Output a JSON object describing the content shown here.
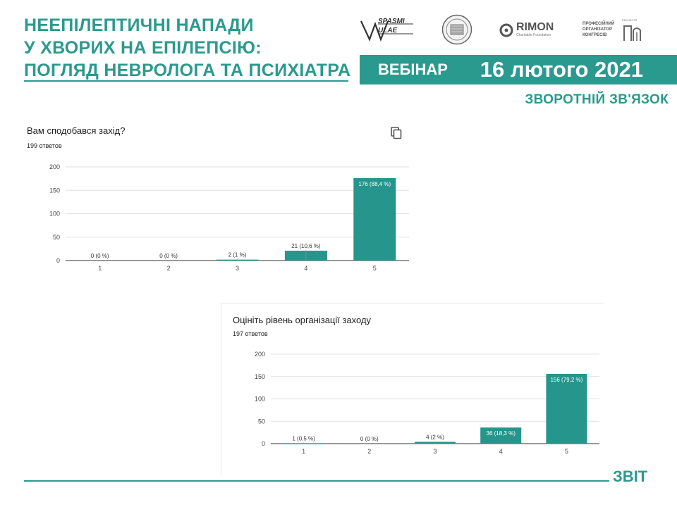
{
  "header": {
    "title_lines": [
      "НЕЕПІЛЕПТИЧНІ НАПАДИ",
      "У ХВОРИХ НА ЕПІЛЕПСІЮ:",
      "ПОГЛЯД НЕВРОЛОГА ТА ПСИХІАТРА"
    ],
    "banner_label": "ВЕБІНАР",
    "banner_date": "16 лютого 2021",
    "feedback_label": "ЗВОРОТНІЙ ЗВ'ЯЗОК",
    "logos": {
      "spasmi": "SPASMI ULAE",
      "rimon_name": "RIMON",
      "rimon_sub": "Charitable Foundation",
      "congress_lines": [
        "ПРОФЕСІЙНИЙ",
        "ОРГАНІЗАТОР",
        "КОНГРЕСІВ"
      ],
      "congress_tag": "PROJECTS"
    }
  },
  "footer": {
    "label": "ЗВІТ"
  },
  "colors": {
    "accent": "#2a9a8e",
    "bar": "#26958c"
  },
  "copy_icon": "copy-icon",
  "chart_data": [
    {
      "type": "bar",
      "title": "Вам сподобався захід?",
      "subtitle": "199 ответов",
      "categories": [
        "1",
        "2",
        "3",
        "4",
        "5"
      ],
      "values": [
        0,
        0,
        2,
        21,
        176
      ],
      "labels": [
        "0 (0 %)",
        "0 (0 %)",
        "2 (1 %)",
        "21 (10,6 %)",
        "176 (88,4 %)"
      ],
      "ylim": [
        0,
        200
      ],
      "yticks": [
        0,
        50,
        100,
        150,
        200
      ],
      "grid": true
    },
    {
      "type": "bar",
      "title": "Оцініть рівень організації заходу",
      "subtitle": "197 ответов",
      "categories": [
        "1",
        "2",
        "3",
        "4",
        "5"
      ],
      "values": [
        1,
        0,
        4,
        36,
        156
      ],
      "labels": [
        "1 (0,5 %)",
        "0 (0 %)",
        "4 (2 %)",
        "36 (18,3 %)",
        "156 (79,2 %)"
      ],
      "ylim": [
        0,
        200
      ],
      "yticks": [
        0,
        50,
        100,
        150,
        200
      ],
      "grid": true
    }
  ]
}
